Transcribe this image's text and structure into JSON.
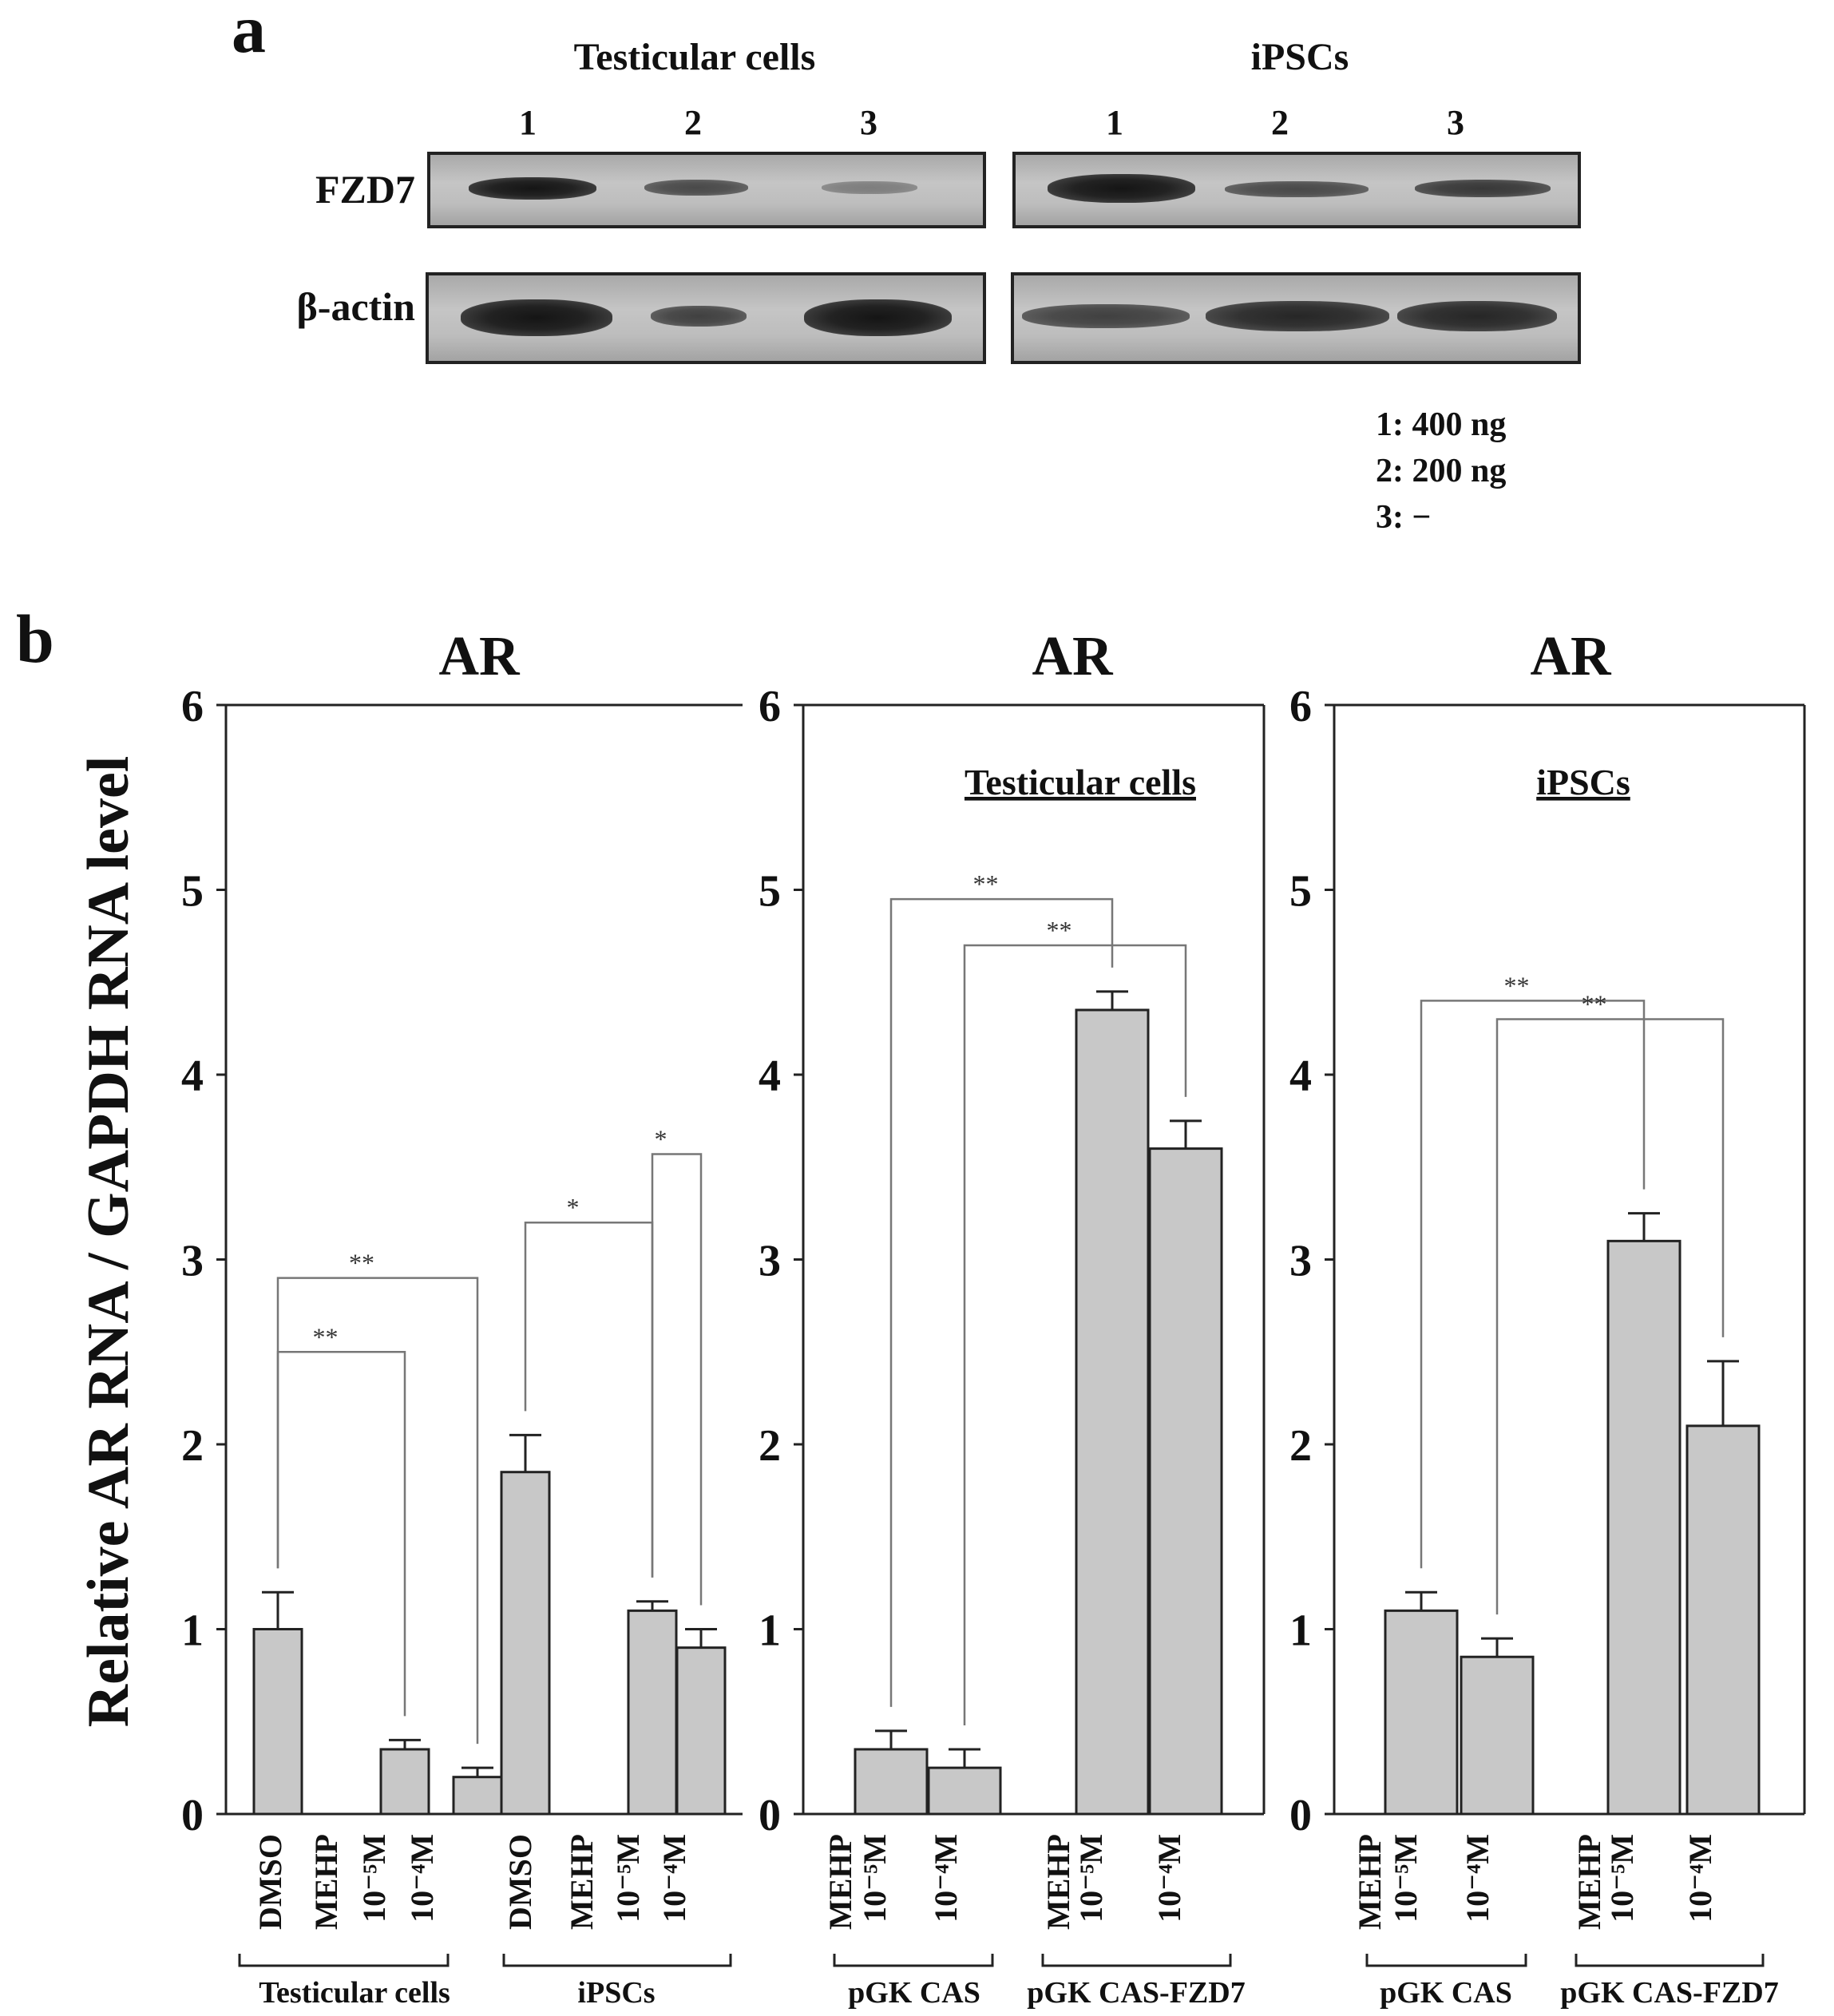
{
  "panel_a": {
    "letter": "a",
    "groups": [
      {
        "title": "Testicular cells",
        "lanes": [
          "1",
          "2",
          "3"
        ]
      },
      {
        "title": "iPSCs",
        "lanes": [
          "1",
          "2",
          "3"
        ]
      }
    ],
    "rows": [
      "FZD7",
      "β-actin"
    ],
    "legend": [
      "1: 400 ng",
      "2: 200 ng",
      "3: −"
    ],
    "band_intensity": {
      "FZD7": {
        "Testicular cells": [
          0.85,
          0.5,
          0.25
        ],
        "iPSCs": [
          1.0,
          0.55,
          0.6
        ]
      },
      "β-actin": {
        "Testicular cells": [
          1.0,
          0.55,
          1.0
        ],
        "iPSCs": [
          0.6,
          0.85,
          0.85
        ]
      }
    }
  },
  "panel_b": {
    "letter": "b",
    "ylabel": "Relative AR RNA / GAPDH RNA level"
  },
  "chart_data": [
    {
      "type": "bar",
      "title": "AR",
      "subtitle": "",
      "ylim": [
        0,
        6
      ],
      "yticks": [
        "0",
        "1",
        "2",
        "3",
        "4",
        "5",
        "6"
      ],
      "categories": [
        "DMSO",
        "MEHP 10⁻⁵M",
        "10⁻⁴M",
        "DMSO",
        "MEHP 10⁻⁵M",
        "10⁻⁴M"
      ],
      "tick_labels": [
        {
          "lines": [
            "DMSO"
          ]
        },
        {
          "lines": [
            "MEHP"
          ]
        },
        {
          "lines": [
            "10⁻⁵M"
          ]
        },
        {
          "lines": [
            "10⁻⁴M"
          ]
        },
        {
          "lines": [
            "DMSO"
          ]
        },
        {
          "lines": [
            "MEHP"
          ]
        },
        {
          "lines": [
            "10⁻⁵M"
          ]
        },
        {
          "lines": [
            "10⁻⁴M"
          ]
        }
      ],
      "groups": [
        "Testicular cells",
        "iPSCs"
      ],
      "values": [
        1.0,
        0.35,
        0.2,
        1.85,
        1.1,
        0.9
      ],
      "errors": [
        0.2,
        0.05,
        0.05,
        0.2,
        0.05,
        0.1
      ],
      "significance": [
        {
          "from": 0,
          "to": 2,
          "label": "**",
          "y": 2.9
        },
        {
          "from": 0,
          "to": 1,
          "label": "**",
          "y": 2.5
        },
        {
          "from": 3,
          "to": 4,
          "label": "*",
          "y": 3.2
        },
        {
          "from": 4,
          "to": 5,
          "label": "*",
          "y": 3.57
        }
      ]
    },
    {
      "type": "bar",
      "title": "AR",
      "subtitle": "Testicular cells",
      "ylim": [
        0,
        6
      ],
      "yticks": [
        "0",
        "1",
        "2",
        "3",
        "4",
        "5",
        "6"
      ],
      "categories": [
        "MEHP 10⁻⁵M",
        "10⁻⁴M",
        "MEHP 10⁻⁵M",
        "10⁻⁴M"
      ],
      "groups": [
        "pGK CAS",
        "pGK CAS-FZD7"
      ],
      "values": [
        0.35,
        0.25,
        4.35,
        3.6
      ],
      "errors": [
        0.1,
        0.1,
        0.1,
        0.15
      ],
      "significance": [
        {
          "from": 0,
          "to": 2,
          "label": "**",
          "y": 4.95
        },
        {
          "from": 1,
          "to": 3,
          "label": "**",
          "y": 4.7
        }
      ]
    },
    {
      "type": "bar",
      "title": "AR",
      "subtitle": "iPSCs",
      "ylim": [
        0,
        6
      ],
      "yticks": [
        "0",
        "1",
        "2",
        "3",
        "4",
        "5",
        "6"
      ],
      "categories": [
        "MEHP 10⁻⁵M",
        "10⁻⁴M",
        "MEHP 10⁻⁵M",
        "10⁻⁴M"
      ],
      "groups": [
        "pGK CAS",
        "pGK CAS-FZD7"
      ],
      "values": [
        1.1,
        0.85,
        3.1,
        2.1
      ],
      "errors": [
        0.1,
        0.1,
        0.15,
        0.35
      ],
      "significance": [
        {
          "from": 0,
          "to": 2,
          "label": "**",
          "y": 4.4
        },
        {
          "from": 1,
          "to": 3,
          "label": "**",
          "y": 4.3
        }
      ]
    }
  ]
}
